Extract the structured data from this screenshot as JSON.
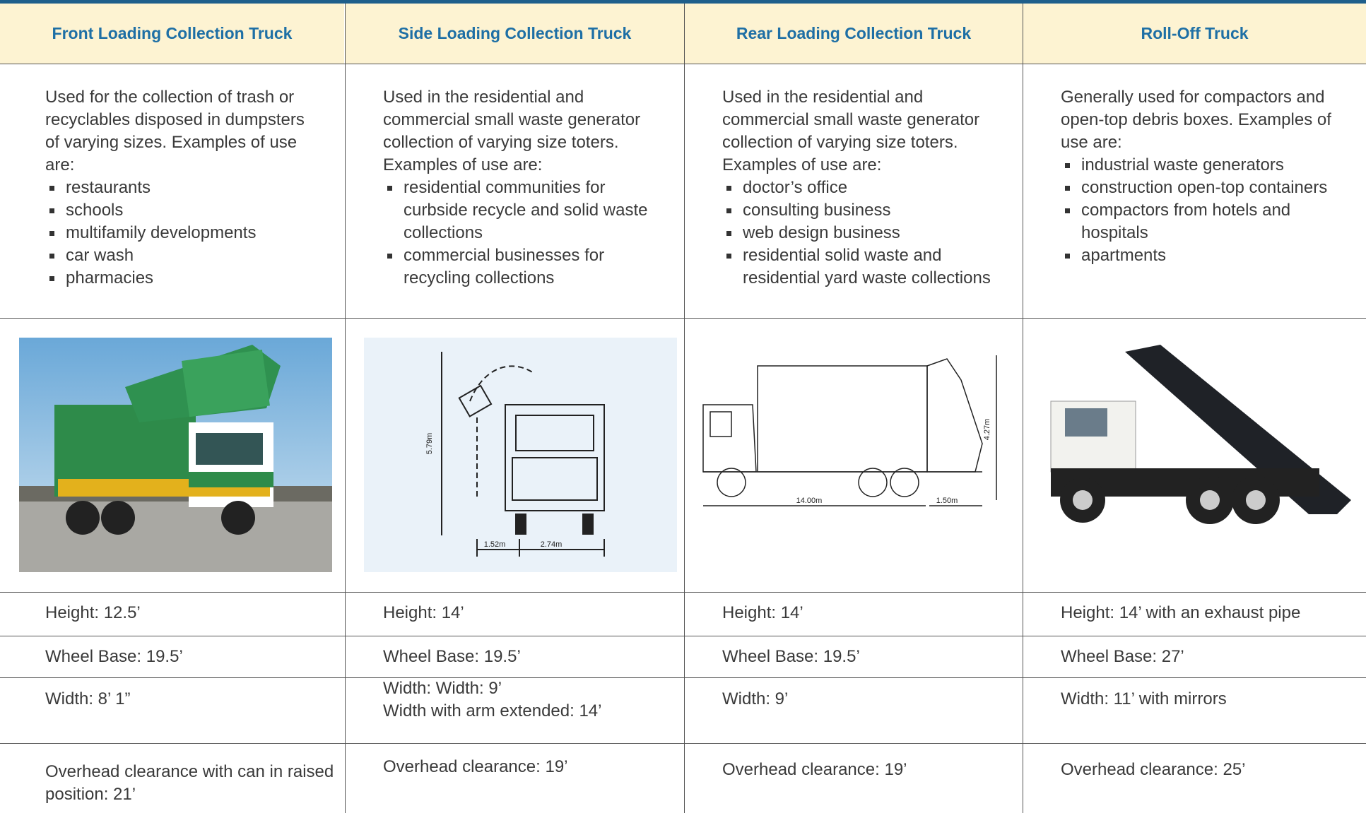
{
  "columns": [
    {
      "title": "Front Loading Collection Truck",
      "description": "Used for the collection of trash or recyclables disposed in dumpsters of varying sizes. Examples of use are:",
      "examples": [
        "restaurants",
        "schools",
        "multifamily developments",
        "car wash",
        "pharmacies"
      ],
      "image_labels": [],
      "specs": [
        "Height: 12.5’",
        "Wheel Base: 19.5’",
        "Width: 8’ 1”",
        "Overhead clearance with can in raised position: 21’"
      ]
    },
    {
      "title": "Side Loading Collection Truck",
      "description": "Used in the residential and commercial small waste generator collection of varying size toters.  Examples of use are:",
      "examples": [
        "residential communities for curbside recycle and solid waste collections",
        "commercial businesses for recycling collections"
      ],
      "image_labels": [
        "5.79m",
        "1.52m",
        "2.74m"
      ],
      "specs": [
        "Height: 14’",
        "Wheel Base: 19.5’",
        "Width: Width: 9’\nWidth with arm extended: 14’",
        "Overhead clearance: 19’"
      ]
    },
    {
      "title": "Rear Loading Collection Truck",
      "description": "Used in the residential and commercial small waste generator collection of varying size toters. Examples of use are:",
      "examples": [
        "doctor’s office",
        "consulting business",
        "web design business",
        "residential solid waste and residential yard waste collections"
      ],
      "image_labels": [
        "4.27m",
        "14.00m",
        "1.50m"
      ],
      "specs": [
        "Height: 14’",
        "Wheel Base: 19.5’",
        "Width: 9’",
        "Overhead clearance: 19’"
      ]
    },
    {
      "title": "Roll-Off Truck",
      "description": "Generally used for compactors and open-top debris boxes. Examples of use are:",
      "examples": [
        "industrial waste generators",
        "construction open-top containers",
        "compactors from hotels and hospitals",
        "apartments"
      ],
      "image_labels": [],
      "specs": [
        "Height: 14’ with an exhaust pipe",
        "Wheel Base: 27’",
        "Width: 11’ with mirrors",
        "Overhead clearance: 25’"
      ]
    }
  ]
}
